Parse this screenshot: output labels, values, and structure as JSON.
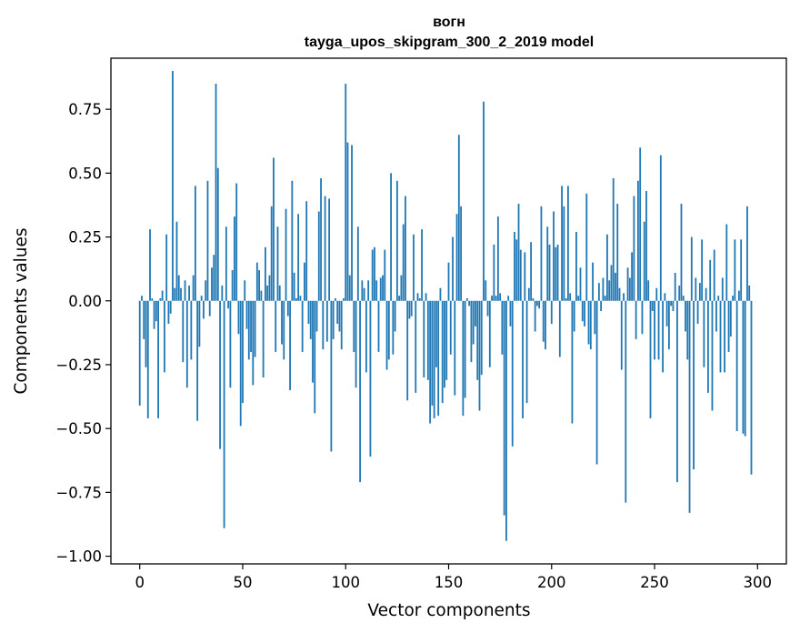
{
  "chart_data": {
    "type": "bar",
    "title_line1": "вогн",
    "title_line2": "tayga_upos_skipgram_300_2_2019 model",
    "xlabel": "Vector components",
    "ylabel": "Components values",
    "xlim": [
      -14,
      314
    ],
    "ylim": [
      -1.03,
      0.95
    ],
    "xticks": [
      0,
      50,
      100,
      150,
      200,
      250,
      300
    ],
    "xtick_labels": [
      "0",
      "50",
      "100",
      "150",
      "200",
      "250",
      "300"
    ],
    "yticks": [
      0.75,
      0.5,
      0.25,
      0.0,
      -0.25,
      -0.5,
      -0.75,
      -1.0
    ],
    "ytick_labels": [
      "0.75",
      "0.50",
      "0.25",
      "0.00",
      "−0.25",
      "−0.50",
      "−0.75",
      "−1.00"
    ],
    "bar_color": "#1f77b4",
    "values": [
      -0.41,
      0.02,
      -0.15,
      -0.26,
      -0.46,
      0.28,
      0.01,
      -0.11,
      -0.08,
      -0.46,
      0.01,
      0.04,
      -0.28,
      0.26,
      -0.09,
      -0.05,
      0.9,
      0.05,
      0.31,
      0.1,
      0.05,
      -0.24,
      0.08,
      -0.34,
      0.06,
      -0.23,
      0.1,
      0.45,
      -0.47,
      -0.18,
      0.02,
      -0.07,
      0.08,
      0.47,
      -0.06,
      0.13,
      0.18,
      0.85,
      0.52,
      -0.58,
      0.06,
      -0.89,
      0.29,
      -0.03,
      -0.34,
      0.12,
      0.33,
      0.46,
      -0.13,
      -0.49,
      -0.4,
      0.08,
      -0.11,
      -0.23,
      -0.2,
      -0.33,
      -0.22,
      0.15,
      0.12,
      0.04,
      -0.3,
      0.21,
      0.06,
      0.1,
      0.37,
      0.56,
      -0.2,
      0.29,
      0.06,
      -0.17,
      -0.23,
      0.36,
      -0.06,
      -0.35,
      0.47,
      0.11,
      0.01,
      0.34,
      0.02,
      -0.2,
      0.15,
      0.39,
      -0.09,
      -0.15,
      -0.32,
      -0.44,
      -0.12,
      0.35,
      0.48,
      -0.19,
      0.41,
      -0.16,
      0.4,
      -0.59,
      -0.15,
      0.01,
      -0.09,
      -0.12,
      -0.19,
      0.01,
      0.85,
      0.62,
      0.1,
      0.61,
      -0.2,
      -0.34,
      0.29,
      -0.71,
      0.08,
      0.05,
      -0.28,
      0.08,
      -0.61,
      0.2,
      0.21,
      0.08,
      -0.2,
      0.09,
      0.1,
      0.2,
      -0.27,
      -0.23,
      0.5,
      -0.21,
      -0.12,
      0.47,
      0.02,
      0.1,
      0.3,
      0.41,
      -0.39,
      -0.07,
      -0.06,
      0.26,
      -0.36,
      0.03,
      0.01,
      0.28,
      -0.3,
      0.03,
      -0.31,
      -0.48,
      -0.41,
      -0.46,
      -0.26,
      -0.45,
      0.05,
      -0.4,
      -0.34,
      -0.31,
      0.15,
      -0.21,
      0.25,
      -0.37,
      0.34,
      0.65,
      0.37,
      -0.45,
      -0.38,
      0.01,
      -0.02,
      -0.24,
      -0.17,
      -0.1,
      -0.31,
      -0.43,
      -0.29,
      0.78,
      0.08,
      -0.06,
      -0.26,
      0.02,
      0.22,
      0.02,
      0.33,
      0.03,
      -0.21,
      -0.84,
      -0.94,
      0.02,
      -0.1,
      -0.57,
      0.27,
      0.24,
      0.38,
      0.2,
      -0.46,
      0.19,
      -0.4,
      0.05,
      0.23,
      0.01,
      -0.12,
      -0.02,
      -0.03,
      0.37,
      -0.16,
      -0.19,
      0.29,
      0.22,
      -0.09,
      0.35,
      0.21,
      0.22,
      -0.22,
      0.45,
      0.37,
      0.01,
      0.45,
      0.03,
      -0.48,
      -0.12,
      0.27,
      0.02,
      0.13,
      -0.08,
      -0.1,
      0.42,
      -0.17,
      -0.19,
      0.15,
      -0.13,
      -0.64,
      0.07,
      -0.04,
      0.09,
      0.02,
      0.26,
      0.08,
      0.14,
      0.48,
      0.11,
      0.38,
      0.05,
      -0.27,
      0.03,
      -0.79,
      0.13,
      0.09,
      0.19,
      0.41,
      -0.15,
      0.47,
      0.6,
      -0.13,
      0.31,
      0.43,
      0.08,
      -0.46,
      -0.04,
      -0.23,
      0.05,
      -0.23,
      0.57,
      -0.28,
      0.03,
      -0.1,
      -0.19,
      -0.02,
      -0.04,
      0.11,
      -0.71,
      0.06,
      0.38,
      0.02,
      -0.12,
      -0.23,
      -0.83,
      0.25,
      -0.66,
      0.09,
      -0.09,
      0.07,
      0.24,
      -0.26,
      0.05,
      -0.36,
      0.16,
      -0.43,
      0.2,
      -0.12,
      0.02,
      -0.28,
      0.09,
      -0.28,
      0.3,
      -0.2,
      -0.14,
      0.02,
      0.24,
      -0.51,
      0.04,
      0.24,
      -0.52,
      -0.53,
      0.37,
      0.06,
      -0.68
    ]
  }
}
